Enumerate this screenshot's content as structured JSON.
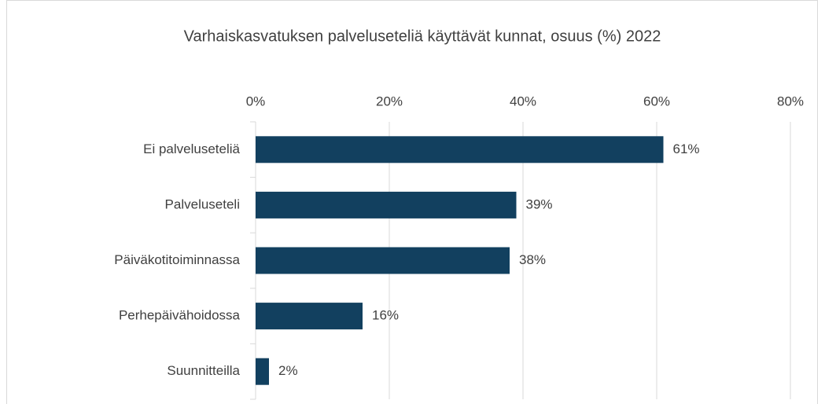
{
  "chart_data": {
    "type": "bar",
    "orientation": "horizontal",
    "title": "Varhaiskasvatuksen palveluseteliä käyttävät kunnat, osuus (%) 2022",
    "categories": [
      "Ei palveluseteliä",
      "Palveluseteli",
      "Päiväkotitoiminnassa",
      "Perhepäivähoidossa",
      "Suunnitteilla"
    ],
    "values": [
      61,
      39,
      38,
      16,
      2
    ],
    "value_labels": [
      "61%",
      "39%",
      "38%",
      "16%",
      "2%"
    ],
    "color": "#12405f",
    "xlim": [
      0,
      80
    ],
    "xticks": [
      {
        "value": 0,
        "label": "0%"
      },
      {
        "value": 20,
        "label": "20%"
      },
      {
        "value": 40,
        "label": "40%"
      },
      {
        "value": 60,
        "label": "60%"
      },
      {
        "value": 80,
        "label": "80%"
      }
    ],
    "grid": true
  }
}
